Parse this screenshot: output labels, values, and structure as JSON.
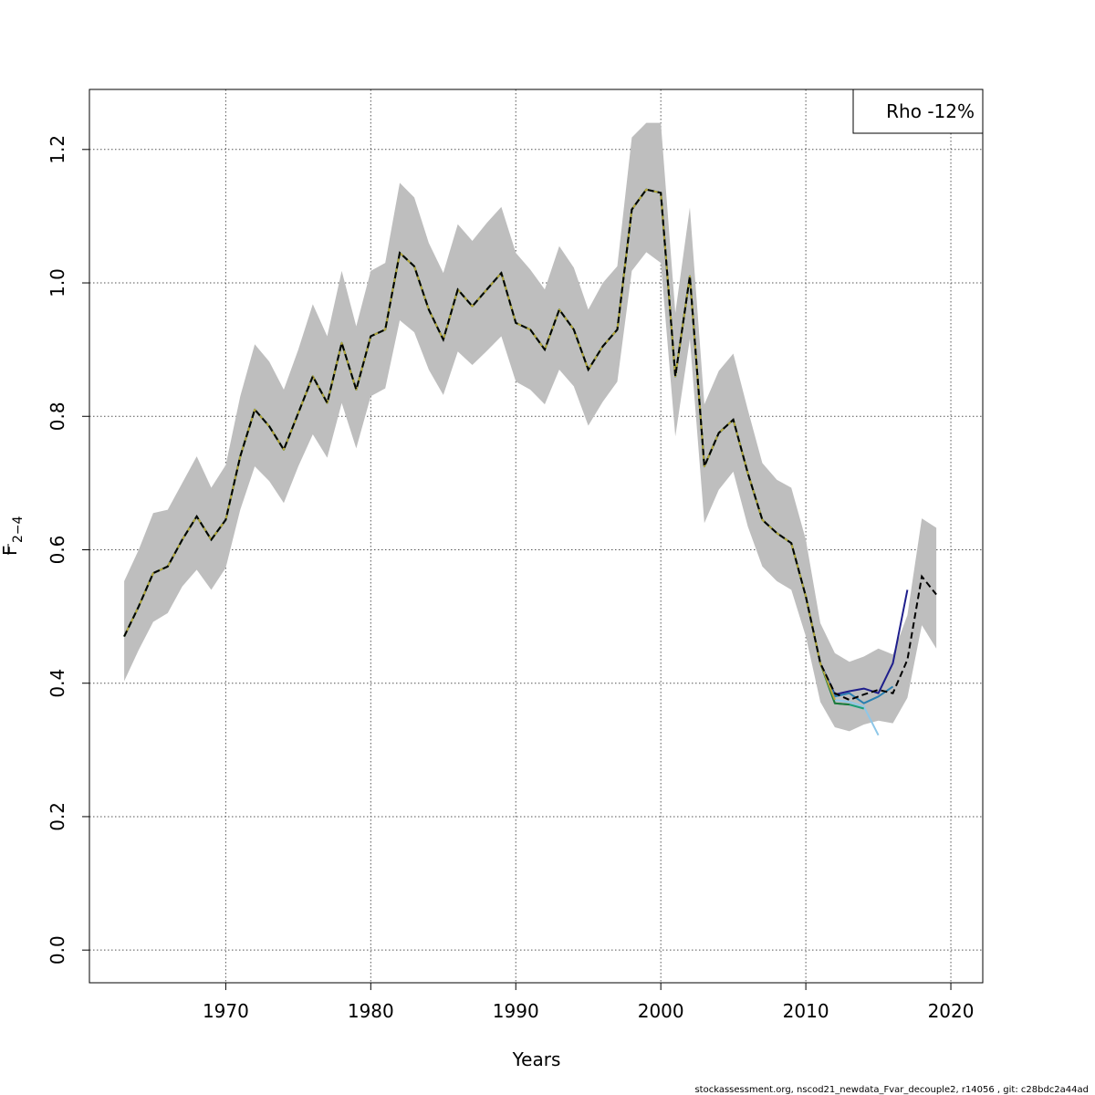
{
  "chart_data": {
    "type": "line",
    "xlabel": "Years",
    "ylabel_main": "F",
    "ylabel_sub": "2−4",
    "legend": {
      "text": "Rho -12%",
      "placement": "top-right"
    },
    "footer": "stockassessment.org, nscod21_newdata_Fvar_decouple2, r14056 , git: c28bdc2a44ad",
    "xlim": [
      1960.6,
      2022.2
    ],
    "ylim": [
      -0.049,
      1.29
    ],
    "xticks": [
      1970,
      1980,
      1990,
      2000,
      2010,
      2020
    ],
    "yticks": [
      0.0,
      0.2,
      0.4,
      0.6,
      0.8,
      1.0,
      1.2
    ],
    "ytick_labels": [
      "0.0",
      "0.2",
      "0.4",
      "0.6",
      "0.8",
      "1.0",
      "1.2"
    ],
    "grid": true,
    "colors": {
      "band": "#bebebe",
      "grid": "#555555",
      "main": "#000000",
      "peels": [
        "#1e1e8c",
        "#2a7fb0",
        "#8ec7e8",
        "#1a9e77",
        "#1b7a3a",
        "#b8a43a"
      ]
    },
    "years": [
      1963,
      1964,
      1965,
      1966,
      1967,
      1968,
      1969,
      1970,
      1971,
      1972,
      1973,
      1974,
      1975,
      1976,
      1977,
      1978,
      1979,
      1980,
      1981,
      1982,
      1983,
      1984,
      1985,
      1986,
      1987,
      1988,
      1989,
      1990,
      1991,
      1992,
      1993,
      1994,
      1995,
      1996,
      1997,
      1998,
      1999,
      2000,
      2001,
      2002,
      2003,
      2004,
      2005,
      2006,
      2007,
      2008,
      2009,
      2010,
      2011,
      2012,
      2013,
      2014,
      2015,
      2016,
      2017,
      2018,
      2019
    ],
    "estimate": [
      0.47,
      0.515,
      0.565,
      0.575,
      0.615,
      0.65,
      0.615,
      0.645,
      0.74,
      0.81,
      0.785,
      0.75,
      0.805,
      0.86,
      0.82,
      0.91,
      0.84,
      0.92,
      0.93,
      1.045,
      1.025,
      0.96,
      0.915,
      0.99,
      0.965,
      0.99,
      1.015,
      0.94,
      0.93,
      0.9,
      0.96,
      0.93,
      0.87,
      0.905,
      0.93,
      1.11,
      1.14,
      1.135,
      0.86,
      1.01,
      0.725,
      0.775,
      0.795,
      0.715,
      0.645,
      0.625,
      0.61,
      0.53,
      0.43,
      0.385,
      0.375,
      0.383,
      0.39,
      0.385,
      0.435,
      0.56,
      0.533
    ],
    "upper": [
      0.553,
      0.6,
      0.655,
      0.66,
      0.7,
      0.74,
      0.693,
      0.727,
      0.83,
      0.908,
      0.882,
      0.84,
      0.9,
      0.968,
      0.92,
      1.018,
      0.935,
      1.018,
      1.03,
      1.15,
      1.128,
      1.06,
      1.015,
      1.088,
      1.063,
      1.09,
      1.114,
      1.045,
      1.02,
      0.99,
      1.055,
      1.023,
      0.96,
      1.0,
      1.025,
      1.218,
      1.24,
      1.24,
      0.955,
      1.113,
      0.818,
      0.868,
      0.894,
      0.81,
      0.73,
      0.705,
      0.693,
      0.615,
      0.49,
      0.445,
      0.432,
      0.44,
      0.452,
      0.443,
      0.502,
      0.647,
      0.633
    ],
    "lower": [
      0.403,
      0.45,
      0.492,
      0.505,
      0.545,
      0.57,
      0.54,
      0.573,
      0.66,
      0.725,
      0.703,
      0.67,
      0.725,
      0.773,
      0.738,
      0.82,
      0.752,
      0.83,
      0.842,
      0.944,
      0.926,
      0.87,
      0.832,
      0.897,
      0.877,
      0.898,
      0.92,
      0.852,
      0.84,
      0.818,
      0.87,
      0.845,
      0.786,
      0.822,
      0.852,
      1.018,
      1.046,
      1.03,
      0.77,
      0.916,
      0.64,
      0.69,
      0.717,
      0.635,
      0.575,
      0.553,
      0.54,
      0.47,
      0.372,
      0.334,
      0.328,
      0.338,
      0.344,
      0.34,
      0.378,
      0.487,
      0.452
    ],
    "peels": [
      {
        "end": 2018,
        "tail": [
          0.385,
          0.383,
          0.388,
          0.392,
          0.385,
          0.43,
          0.54
        ]
      },
      {
        "end": 2017,
        "tail": [
          0.385,
          0.38,
          0.385,
          0.37,
          0.38,
          0.395
        ]
      },
      {
        "end": 2016,
        "tail": [
          0.385,
          0.375,
          0.372,
          0.365,
          0.322
        ]
      },
      {
        "end": 2015,
        "tail": [
          0.385,
          0.37,
          0.368,
          0.362
        ]
      },
      {
        "end": 2014,
        "tail": [
          0.385,
          0.37,
          0.368
        ]
      },
      {
        "end": 2013,
        "tail": [
          0.385,
          0.375
        ]
      }
    ]
  }
}
